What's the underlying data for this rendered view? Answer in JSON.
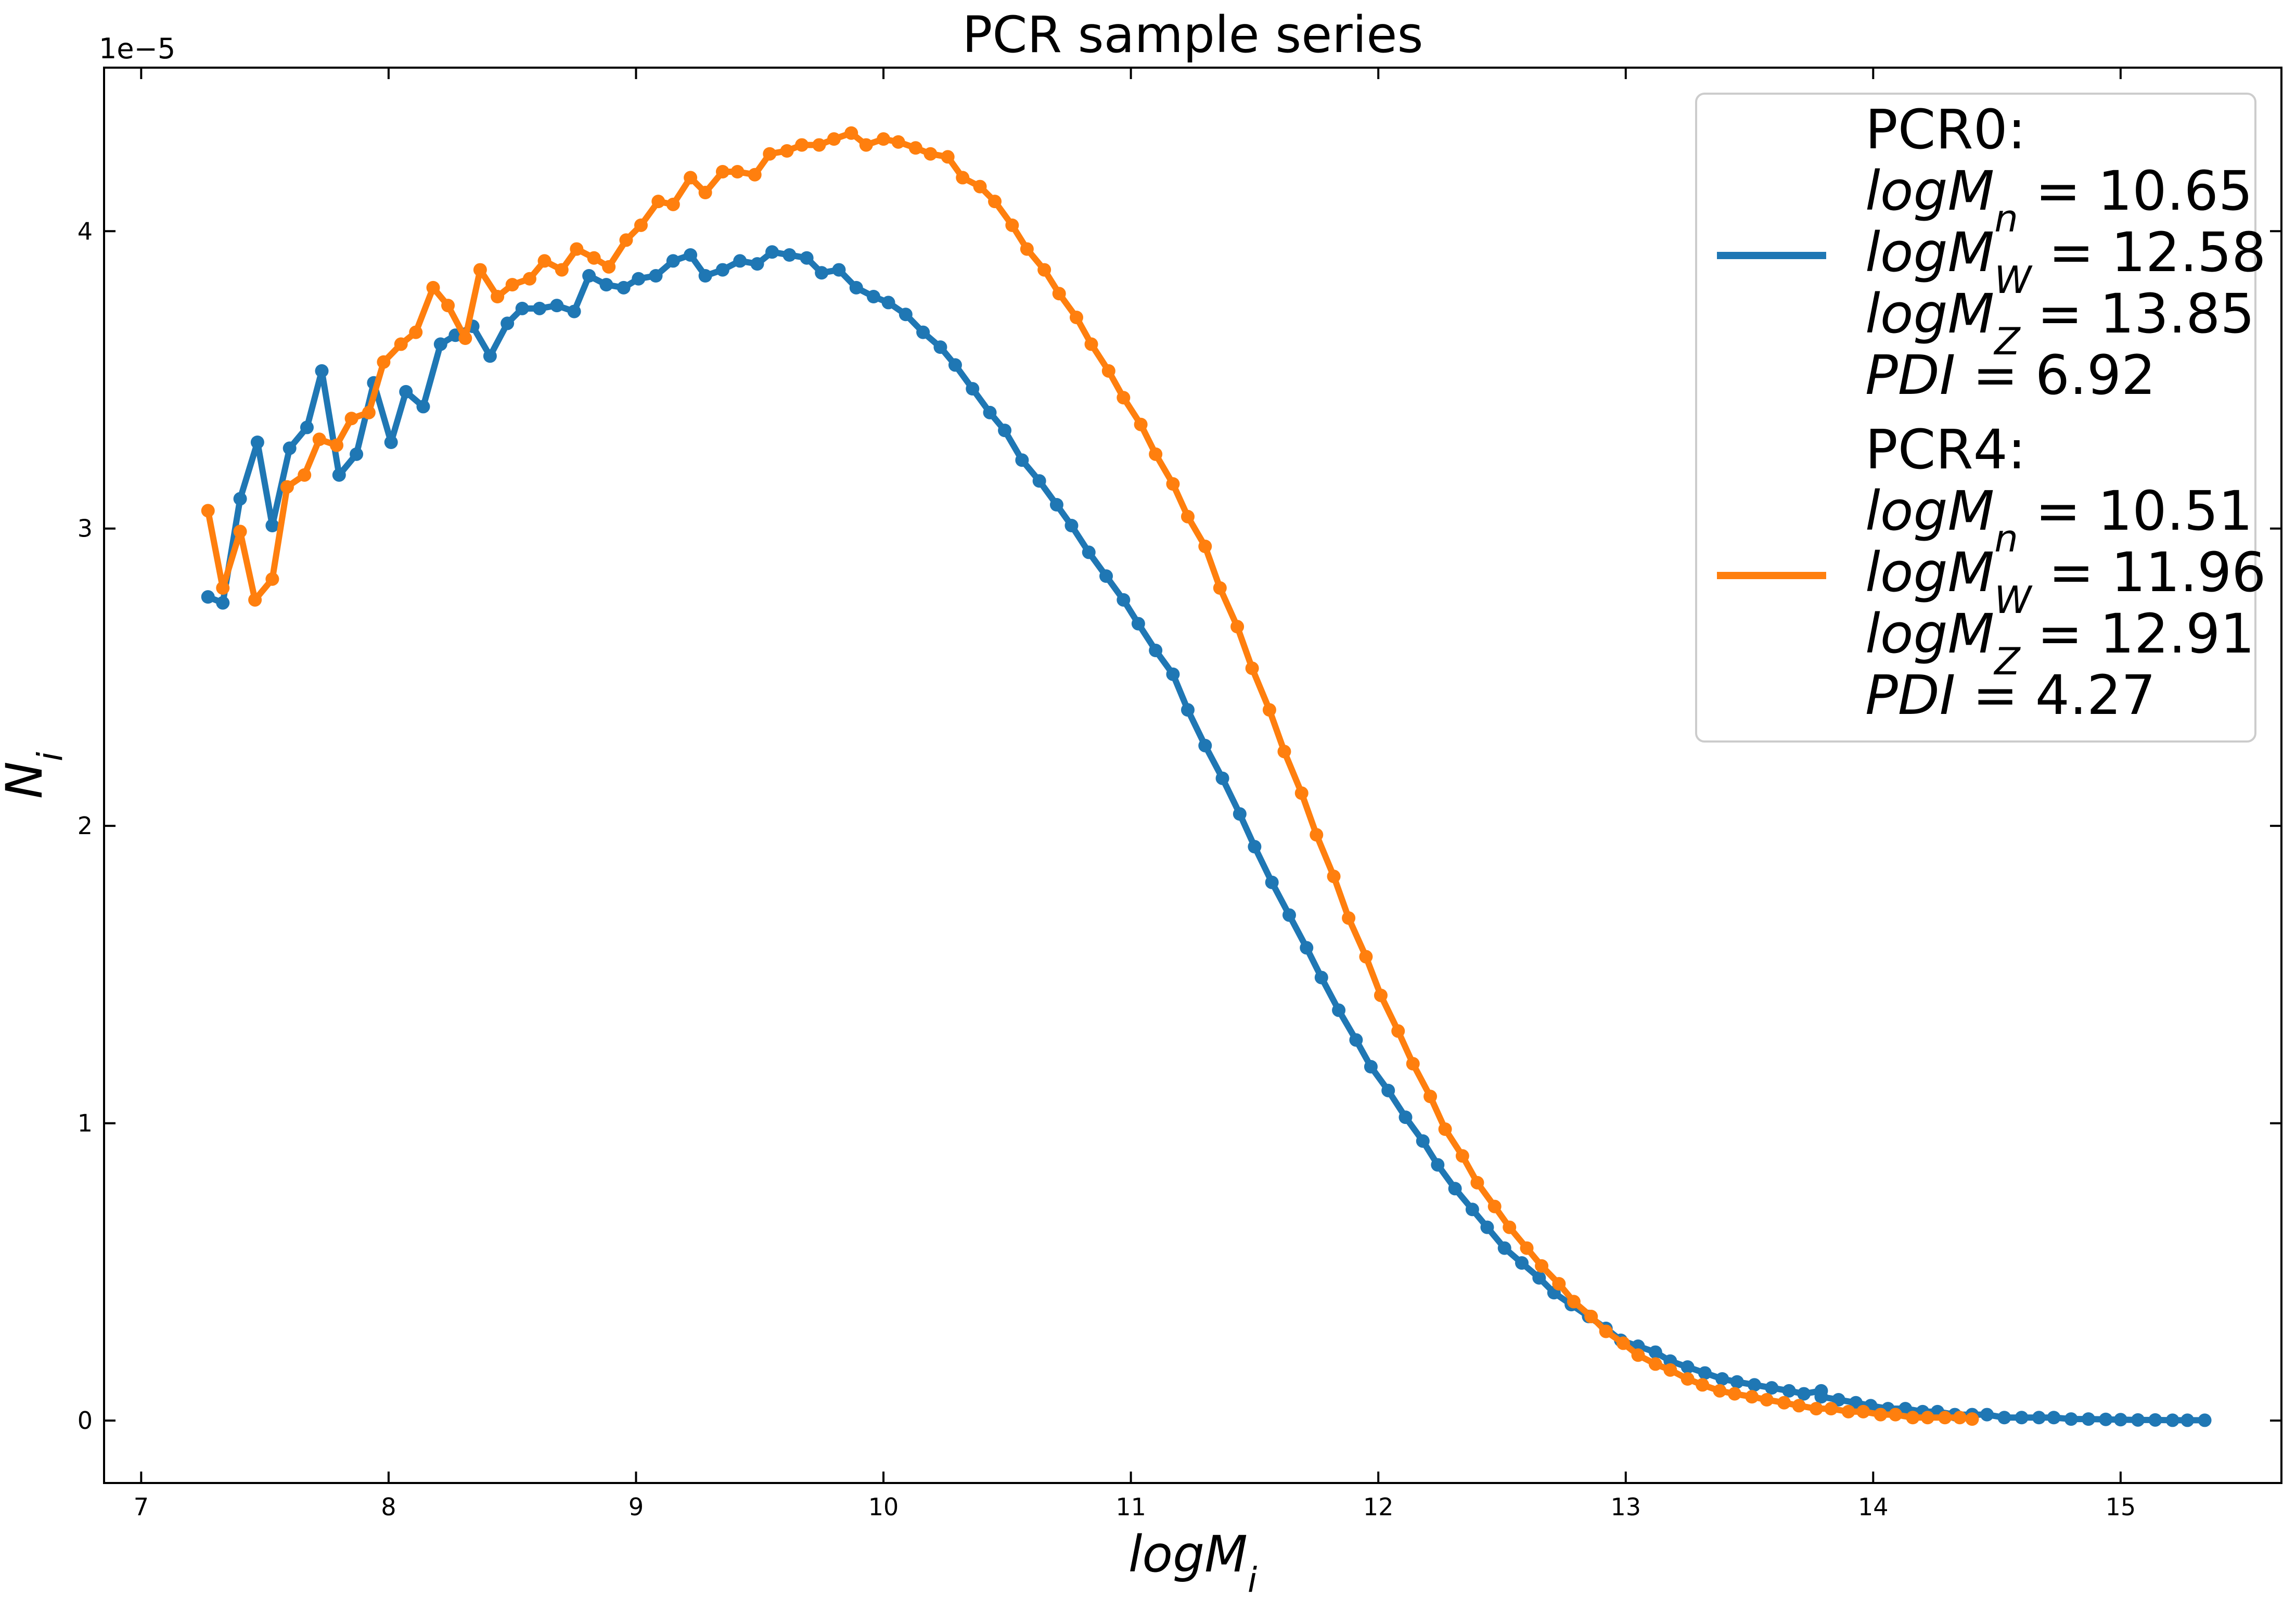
{
  "chart_data": {
    "type": "line",
    "title": "PCR sample series",
    "xlabel": "logM_i",
    "ylabel": "N_i",
    "y_offset_label": "1e−5",
    "xlim": [
      6.85,
      15.65
    ],
    "ylim": [
      -0.21,
      4.55
    ],
    "x_ticks": [
      7,
      8,
      9,
      10,
      11,
      12,
      13,
      14,
      15
    ],
    "y_ticks": [
      0,
      1,
      2,
      3,
      4
    ],
    "grid": false,
    "legend_position": "top-right",
    "series": [
      {
        "name": "PCR0:",
        "color": "#1f77b4",
        "stats": [
          "logM_n = 10.65",
          "logM_W = 12.58",
          "logM_Z = 13.85",
          "PDI = 6.92"
        ],
        "x": [
          7.27,
          7.33,
          7.4,
          7.47,
          7.53,
          7.6,
          7.67,
          7.73,
          7.8,
          7.87,
          7.94,
          8.01,
          8.07,
          8.14,
          8.21,
          8.27,
          8.34,
          8.41,
          8.48,
          8.54,
          8.61,
          8.68,
          8.75,
          8.81,
          8.88,
          8.95,
          9.01,
          9.08,
          9.15,
          9.22,
          9.28,
          9.35,
          9.42,
          9.49,
          9.55,
          9.62,
          9.69,
          9.75,
          9.82,
          9.89,
          9.96,
          10.02,
          10.09,
          10.16,
          10.23,
          10.29,
          10.36,
          10.43,
          10.49,
          10.56,
          10.63,
          10.7,
          10.76,
          10.83,
          10.9,
          10.97,
          11.03,
          11.1,
          11.17,
          11.23,
          11.3,
          11.37,
          11.44,
          11.5,
          11.57,
          11.64,
          11.71,
          11.77,
          11.84,
          11.91,
          11.97,
          12.04,
          12.11,
          12.18,
          12.24,
          12.31,
          12.38,
          12.44,
          12.51,
          12.58,
          12.65,
          12.71,
          12.78,
          12.85,
          12.92,
          12.98,
          13.05,
          13.12,
          13.18,
          13.25,
          13.32,
          13.39,
          13.45,
          13.52,
          13.59,
          13.66,
          13.72,
          13.79,
          13.79,
          13.86,
          13.93,
          13.99,
          14.06,
          14.13,
          14.2,
          14.26,
          14.33,
          14.4,
          14.46,
          14.53,
          14.6,
          14.67,
          14.73,
          14.8,
          14.87,
          14.94,
          15.0,
          15.07,
          15.14,
          15.21,
          15.27,
          15.34
        ],
        "values": [
          2.77,
          2.75,
          3.1,
          3.29,
          3.01,
          3.27,
          3.34,
          3.53,
          3.18,
          3.25,
          3.49,
          3.29,
          3.46,
          3.41,
          3.62,
          3.65,
          3.68,
          3.58,
          3.69,
          3.74,
          3.74,
          3.75,
          3.73,
          3.85,
          3.82,
          3.81,
          3.84,
          3.85,
          3.9,
          3.92,
          3.85,
          3.87,
          3.9,
          3.89,
          3.93,
          3.92,
          3.91,
          3.86,
          3.87,
          3.81,
          3.78,
          3.76,
          3.72,
          3.66,
          3.61,
          3.55,
          3.47,
          3.39,
          3.33,
          3.23,
          3.16,
          3.08,
          3.01,
          2.92,
          2.84,
          2.76,
          2.68,
          2.59,
          2.51,
          2.39,
          2.27,
          2.16,
          2.04,
          1.93,
          1.81,
          1.7,
          1.59,
          1.49,
          1.38,
          1.28,
          1.19,
          1.11,
          1.02,
          0.94,
          0.86,
          0.78,
          0.71,
          0.65,
          0.58,
          0.53,
          0.48,
          0.43,
          0.39,
          0.35,
          0.31,
          0.27,
          0.25,
          0.23,
          0.2,
          0.18,
          0.16,
          0.14,
          0.13,
          0.12,
          0.11,
          0.1,
          0.09,
          0.1,
          0.08,
          0.07,
          0.06,
          0.05,
          0.04,
          0.04,
          0.03,
          0.03,
          0.02,
          0.02,
          0.02,
          0.01,
          0.01,
          0.01,
          0.01,
          0.005,
          0.005,
          0.004,
          0.003,
          0.002,
          0.002,
          0.001,
          0.001,
          0.001
        ]
      },
      {
        "name": "PCR4:",
        "color": "#ff7f0e",
        "stats": [
          "logM_n = 10.51",
          "logM_W = 11.96",
          "logM_Z = 12.91",
          "PDI = 4.27"
        ],
        "x": [
          7.27,
          7.33,
          7.4,
          7.46,
          7.53,
          7.59,
          7.66,
          7.72,
          7.79,
          7.85,
          7.92,
          7.98,
          8.05,
          8.11,
          8.18,
          8.24,
          8.31,
          8.37,
          8.44,
          8.5,
          8.57,
          8.63,
          8.7,
          8.76,
          8.83,
          8.89,
          8.96,
          9.02,
          9.09,
          9.15,
          9.22,
          9.28,
          9.35,
          9.41,
          9.48,
          9.54,
          9.61,
          9.67,
          9.74,
          9.8,
          9.87,
          9.93,
          10.0,
          10.06,
          10.13,
          10.19,
          10.26,
          10.32,
          10.39,
          10.45,
          10.52,
          10.58,
          10.65,
          10.71,
          10.78,
          10.84,
          10.91,
          10.97,
          11.04,
          11.1,
          11.17,
          11.23,
          11.3,
          11.36,
          11.43,
          11.49,
          11.56,
          11.62,
          11.69,
          11.75,
          11.82,
          11.88,
          11.95,
          12.01,
          12.08,
          12.14,
          12.21,
          12.27,
          12.34,
          12.4,
          12.47,
          12.53,
          12.6,
          12.66,
          12.73,
          12.79,
          12.86,
          12.92,
          12.99,
          13.05,
          13.12,
          13.18,
          13.25,
          13.31,
          13.38,
          13.44,
          13.51,
          13.57,
          13.64,
          13.7,
          13.77,
          13.83,
          13.9,
          13.96,
          14.03,
          14.09,
          14.16,
          14.22,
          14.29,
          14.35,
          14.4
        ],
        "values": [
          3.06,
          2.8,
          2.99,
          2.76,
          2.83,
          3.14,
          3.18,
          3.3,
          3.28,
          3.37,
          3.39,
          3.56,
          3.62,
          3.66,
          3.81,
          3.75,
          3.64,
          3.87,
          3.78,
          3.82,
          3.84,
          3.9,
          3.87,
          3.94,
          3.91,
          3.88,
          3.97,
          4.02,
          4.1,
          4.09,
          4.18,
          4.13,
          4.2,
          4.2,
          4.19,
          4.26,
          4.27,
          4.29,
          4.29,
          4.31,
          4.33,
          4.29,
          4.31,
          4.3,
          4.28,
          4.26,
          4.25,
          4.18,
          4.15,
          4.1,
          4.02,
          3.94,
          3.87,
          3.79,
          3.71,
          3.62,
          3.53,
          3.44,
          3.35,
          3.25,
          3.15,
          3.04,
          2.94,
          2.8,
          2.67,
          2.53,
          2.39,
          2.25,
          2.11,
          1.97,
          1.83,
          1.69,
          1.56,
          1.43,
          1.31,
          1.2,
          1.09,
          0.98,
          0.89,
          0.8,
          0.72,
          0.65,
          0.58,
          0.52,
          0.46,
          0.4,
          0.35,
          0.3,
          0.26,
          0.22,
          0.19,
          0.17,
          0.14,
          0.12,
          0.1,
          0.09,
          0.08,
          0.07,
          0.06,
          0.05,
          0.04,
          0.04,
          0.03,
          0.03,
          0.02,
          0.02,
          0.01,
          0.01,
          0.01,
          0.01,
          0.005
        ]
      }
    ]
  }
}
